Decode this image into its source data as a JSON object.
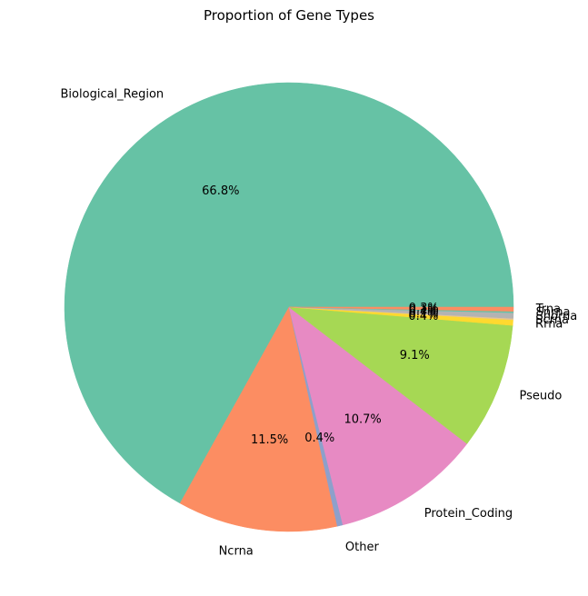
{
  "chart_data": {
    "type": "pie",
    "title": "Proportion of Gene Types",
    "slices": [
      {
        "label": "Biological_Region",
        "value": 66.8,
        "pct_text": "66.8%",
        "color": "#66c2a5"
      },
      {
        "label": "Ncrna",
        "value": 11.5,
        "pct_text": "11.5%",
        "color": "#fc8d62"
      },
      {
        "label": "Other",
        "value": 0.4,
        "pct_text": "0.4%",
        "color": "#8da0cb"
      },
      {
        "label": "Protein_Coding",
        "value": 10.7,
        "pct_text": "10.7%",
        "color": "#e78ac3"
      },
      {
        "label": "Pseudo",
        "value": 9.1,
        "pct_text": "9.1%",
        "color": "#a6d854"
      },
      {
        "label": "Rrna",
        "value": 0.4,
        "pct_text": "0.4%",
        "color": "#ffd92f"
      },
      {
        "label": "Scrna",
        "value": 0.1,
        "pct_text": "0.1%",
        "color": "#e5c494"
      },
      {
        "label": "Snorna",
        "value": 0.4,
        "pct_text": "0.4%",
        "color": "#b3b3b3"
      },
      {
        "label": "Snrna",
        "value": 0.1,
        "pct_text": "0.1%",
        "color": "#66c2a5"
      },
      {
        "label": "Trna",
        "value": 0.3,
        "pct_text": "0.3%",
        "color": "#fc8d62"
      }
    ],
    "start": "positive x-axis",
    "direction": "counterclockwise",
    "legend": "none"
  }
}
